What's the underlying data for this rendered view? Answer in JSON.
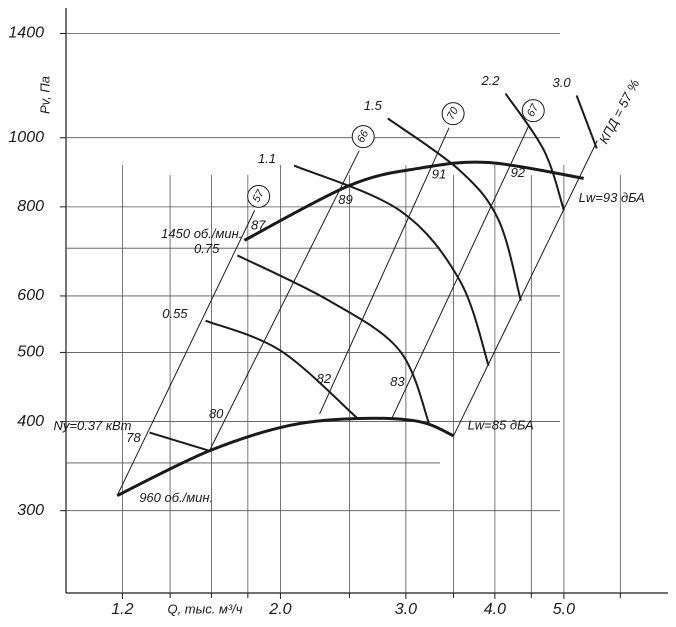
{
  "chart_data": {
    "type": "line",
    "x_label": "Q, тыс. м³/ч",
    "y_label": "Pv, Па",
    "log_x": true,
    "log_y": true,
    "xlim": [
      1.0,
      7.0
    ],
    "ylim": [
      230,
      1520
    ],
    "xticks": [
      1.2,
      {
        "value": 2,
        "label": "2.0"
      },
      {
        "value": 3,
        "label": "3.0"
      },
      {
        "value": 4,
        "label": "4.0"
      },
      {
        "value": 5,
        "label": "5.0"
      }
    ],
    "minor_xticks": [
      1.4,
      1.6,
      1.8,
      2.5,
      3.5,
      4.5,
      6.0
    ],
    "yticks": [
      300,
      400,
      500,
      600,
      800,
      1000,
      1400
    ],
    "minor_yticks": [
      350,
      700
    ],
    "grid": true,
    "color": "#1a1a1a",
    "speed_curves": [
      {
        "name": "1450 об./мин.",
        "noise": "Lw=93 дБА",
        "x": [
          1.78,
          2.5,
          3.13,
          3.92,
          5.33
        ],
        "y": [
          718,
          857,
          906,
          923,
          877
        ]
      },
      {
        "name": "960 об./мин.",
        "noise": "Lw=85 дБА",
        "x": [
          1.18,
          1.59,
          2.06,
          2.58,
          3.13,
          3.5
        ],
        "y": [
          315,
          364,
          395,
          404,
          400,
          382
        ]
      }
    ],
    "power_curves": [
      {
        "name": "Ny=0.37 кВт",
        "x": [
          1.31,
          1.59
        ],
        "y": [
          386,
          364
        ]
      },
      {
        "name": "0.55",
        "x": [
          1.57,
          2.0,
          2.56
        ],
        "y": [
          554,
          503,
          405
        ]
      },
      {
        "name": "0.75",
        "x": [
          1.74,
          2.34,
          2.94,
          3.24
        ],
        "y": [
          684,
          591,
          503,
          395
        ]
      },
      {
        "name": "1.1",
        "x": [
          2.09,
          2.94,
          3.57,
          3.92
        ],
        "y": [
          914,
          791,
          631,
          479
        ]
      },
      {
        "name": "1.5",
        "x": [
          2.83,
          3.57,
          4.05,
          4.35
        ],
        "y": [
          1064,
          900,
          766,
          591
        ]
      },
      {
        "name": "2.2",
        "x": [
          4.14,
          4.69,
          5.0
        ],
        "y": [
          1153,
          959,
          791
        ]
      },
      {
        "name": "3.0",
        "x": [
          5.21,
          5.56
        ],
        "y": [
          1146,
          966
        ]
      }
    ],
    "efficiency_lines": [
      {
        "name": "57",
        "low": "78",
        "high": "87",
        "x": [
          1.18,
          1.84
        ],
        "y": [
          315,
          791
        ]
      },
      {
        "name": "66",
        "low": "80",
        "high": "89",
        "x": [
          1.59,
          2.58
        ],
        "y": [
          364,
          959
        ]
      },
      {
        "name": "70",
        "low": "82",
        "high": "91",
        "x": [
          2.27,
          3.45
        ],
        "y": [
          410,
          1033
        ]
      },
      {
        "name": "67",
        "low": "83",
        "high": "92",
        "x": [
          2.87,
          4.47
        ],
        "y": [
          405,
          1043
        ]
      }
    ],
    "boundary_line": {
      "x": [
        3.5,
        5.57
      ],
      "y": [
        382,
        991
      ]
    },
    "efficiency_note": "КПД = 57 %"
  }
}
